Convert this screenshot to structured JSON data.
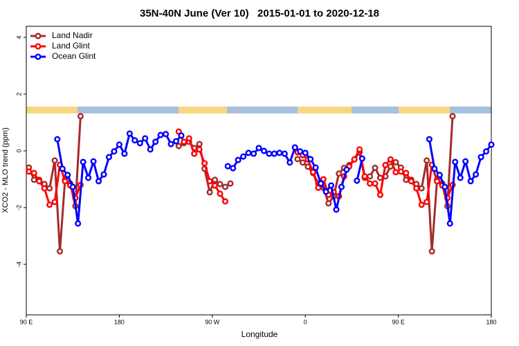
{
  "chart_data": {
    "type": "line",
    "title": "35N-40N June (Ver 10)   2015-01-01 to 2020-12-18",
    "x_label": "Longitude",
    "y_label": "XCO2 - MLO trend (ppm)",
    "xlim": [
      90,
      540
    ],
    "ylim": [
      -5.78,
      4.39
    ],
    "xticks": [
      {
        "value": 90,
        "label": "90 E"
      },
      180,
      {
        "value": 270,
        "label": "90 W"
      },
      {
        "value": 360,
        "label": "0"
      },
      {
        "value": 450,
        "label": "90 E"
      },
      {
        "value": 540,
        "label": "180"
      }
    ],
    "yticks": [
      -4,
      -2,
      0,
      2,
      4
    ],
    "grid": false,
    "legend": "top-left",
    "series": [
      {
        "name": "Land Nadir",
        "color": "#a52a2a",
        "x": [
          92.5,
          97.5,
          102.5,
          107.5,
          112.5,
          117.5,
          122.5,
          127.5,
          132.5,
          137.5,
          142.5,
          145,
          237.5,
          242.5,
          247.5,
          252.5,
          257.5,
          262.5,
          267.5,
          272.5,
          277.5,
          282.5,
          287.5,
          320,
          352.5,
          357.5,
          362.5,
          367.5,
          372.5,
          377.5,
          382.5,
          387.5,
          392.5,
          397.5,
          402.5,
          407.5,
          412.5,
          417.5,
          422.5,
          427.5,
          432.5,
          437.5,
          442.5,
          447.5,
          452.5,
          457.5,
          462.5,
          467.5,
          472.5,
          477.5,
          482.5,
          487.5,
          492.5,
          497.5,
          502.5
        ],
        "values": [
          -0.59,
          -1.02,
          -1.02,
          -1.17,
          -1.32,
          -0.34,
          -3.54,
          -1.02,
          -1.15,
          -1.95,
          1.22,
          null,
          0.17,
          0.27,
          0.32,
          0.1,
          0.24,
          -0.63,
          -1.46,
          -1.02,
          -1.17,
          -1.27,
          -1.15,
          null,
          -0.29,
          -0.41,
          -0.56,
          -0.78,
          -1.15,
          -1.3,
          -1.85,
          -1.6,
          -0.8,
          -0.6,
          -0.5,
          -0.3,
          -0.05,
          -0.95,
          -0.9,
          -0.6,
          -0.95,
          -0.9,
          -0.55,
          -0.4,
          -0.59,
          -1.02,
          -1.02,
          -1.17,
          -1.32,
          -0.34,
          -3.54,
          -1.02,
          -1.15,
          -1.95,
          1.22
        ]
      },
      {
        "name": "Land Glint",
        "color": "#ff0000",
        "x": [
          92.5,
          97.5,
          102.5,
          107.5,
          112.5,
          117.5,
          122.5,
          127.5,
          132.5,
          137.5,
          142.5,
          145,
          237.5,
          242.5,
          247.5,
          252.5,
          257.5,
          262.5,
          267.5,
          272.5,
          277.5,
          282.5,
          320,
          352.5,
          357.5,
          362.5,
          367.5,
          372.5,
          377.5,
          382.5,
          387.5,
          392.5,
          397.5,
          402.5,
          407.5,
          412.5,
          417.5,
          422.5,
          427.5,
          432.5,
          437.5,
          442.5,
          447.5,
          452.5,
          457.5,
          462.5,
          467.5,
          472.5,
          477.5,
          482.5,
          487.5,
          492.5,
          497.5,
          502.5
        ],
        "values": [
          -0.73,
          -0.78,
          -1.07,
          -1.32,
          -1.9,
          -1.8,
          -0.49,
          -1.07,
          -1.22,
          -1.66,
          -1.2,
          null,
          0.68,
          0.32,
          0.44,
          -0.1,
          0.05,
          -0.44,
          -1.07,
          -1.22,
          -1.51,
          -1.78,
          null,
          -0.05,
          -0.15,
          -0.3,
          -0.75,
          -1.3,
          -1.0,
          -1.55,
          -1.45,
          -1.6,
          -0.9,
          -0.55,
          -0.3,
          0.05,
          -0.9,
          -1.15,
          -1.15,
          -1.55,
          -0.5,
          -0.3,
          -0.75,
          -0.73,
          -0.78,
          -1.07,
          -1.32,
          -1.9,
          -1.8,
          -0.49,
          -1.07,
          -1.22,
          -1.66,
          -1.2
        ]
      },
      {
        "name": "Ocean Glint",
        "color": "#0000ff",
        "x": [
          120,
          125,
          130,
          135,
          140,
          145,
          150,
          155,
          160,
          165,
          170,
          175,
          180,
          185,
          190,
          195,
          200,
          205,
          210,
          215,
          220,
          225,
          230,
          235,
          240,
          262,
          285,
          290,
          295,
          300,
          305,
          310,
          315,
          320,
          325,
          330,
          335,
          340,
          345,
          350,
          355,
          360,
          365,
          370,
          375,
          380,
          385,
          390,
          395,
          400,
          405,
          410,
          415,
          450,
          480,
          485,
          490,
          495,
          500,
          505,
          510,
          515,
          520,
          525,
          530,
          535,
          540
        ],
        "values": [
          0.41,
          -0.63,
          -0.85,
          -1.27,
          -2.56,
          -0.39,
          -0.95,
          -0.37,
          -1.07,
          -0.83,
          -0.22,
          -0.02,
          0.22,
          -0.1,
          0.61,
          0.37,
          0.27,
          0.44,
          0.05,
          0.32,
          0.56,
          0.59,
          0.24,
          0.34,
          0.54,
          null,
          -0.54,
          -0.61,
          -0.32,
          -0.2,
          -0.07,
          -0.1,
          0.1,
          0,
          -0.1,
          -0.1,
          -0.07,
          -0.1,
          -0.41,
          0.12,
          -0.02,
          -0.07,
          -0.29,
          -0.59,
          -1.15,
          -1.44,
          -1.22,
          -2.07,
          -1.27,
          -0.66,
          null,
          -1.05,
          -0.27,
          null,
          0.41,
          -0.63,
          -0.85,
          -1.27,
          -2.56,
          -0.39,
          -0.95,
          -0.37,
          -1.07,
          -0.83,
          -0.22,
          -0.02,
          0.22
        ]
      }
    ]
  }
}
